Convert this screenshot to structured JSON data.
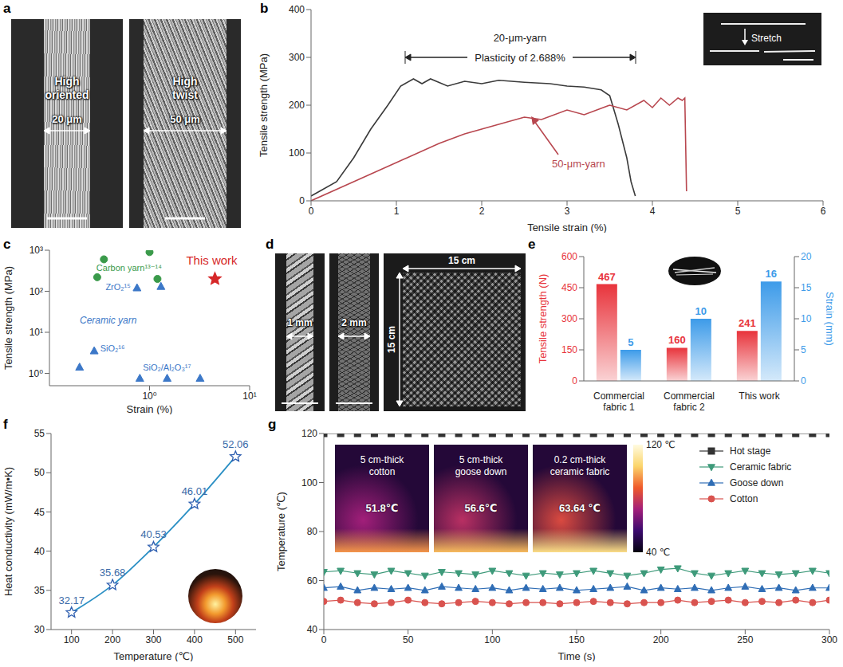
{
  "chart_data": [
    {
      "panel": "b",
      "type": "line",
      "xlabel": "Tensile strain (%)",
      "ylabel": "Tensile strength (MPa)",
      "xlim": [
        0,
        6
      ],
      "xticks": [
        0,
        1,
        2,
        3,
        4,
        5,
        6
      ],
      "ylim": [
        0,
        400
      ],
      "yticks": [
        0,
        100,
        200,
        300,
        400
      ],
      "series": [
        {
          "name": "20-μm-yarn",
          "color": "#3a3a3a",
          "x": [
            0,
            0.1,
            0.3,
            0.5,
            0.7,
            0.9,
            1.05,
            1.2,
            1.3,
            1.4,
            1.6,
            1.8,
            2.0,
            2.2,
            2.5,
            2.8,
            3.0,
            3.2,
            3.4,
            3.5,
            3.6,
            3.7,
            3.75,
            3.8
          ],
          "values": [
            10,
            20,
            40,
            90,
            150,
            200,
            240,
            255,
            245,
            255,
            240,
            250,
            245,
            252,
            248,
            245,
            240,
            238,
            232,
            220,
            160,
            90,
            40,
            10
          ]
        },
        {
          "name": "50-μm-yarn",
          "color": "#b8474f",
          "x": [
            0,
            0.5,
            1.0,
            1.5,
            1.8,
            2.0,
            2.2,
            2.5,
            2.7,
            3.0,
            3.2,
            3.5,
            3.7,
            3.9,
            4.0,
            4.1,
            4.2,
            4.3,
            4.35,
            4.38,
            4.4
          ],
          "values": [
            0,
            40,
            80,
            120,
            140,
            150,
            160,
            175,
            170,
            190,
            180,
            200,
            190,
            210,
            195,
            215,
            200,
            215,
            210,
            215,
            20
          ]
        }
      ],
      "annotations": [
        "Plasticity of 2.688%",
        "Stretch"
      ]
    },
    {
      "panel": "c",
      "type": "scatter",
      "log": true,
      "xlabel": "Strain (%)",
      "ylabel": "Tensile strength (MPa)",
      "xlim": [
        0.1,
        10
      ],
      "xticks": [
        {
          "value": 1,
          "label": "10⁰"
        },
        {
          "value": 10,
          "label": "10¹"
        }
      ],
      "ylim": [
        0.5,
        1000
      ],
      "yticks": [
        {
          "value": 1,
          "label": "10⁰"
        },
        {
          "value": 10,
          "label": "10¹"
        },
        {
          "value": 100,
          "label": "10²"
        },
        {
          "value": 1000,
          "label": "10³"
        }
      ],
      "series": [
        {
          "name": "Carbon yarn¹³⁻¹⁴",
          "color": "#3a9a4a",
          "marker": "circle",
          "x": [
            0.3,
            0.35,
            1.0,
            1.2
          ],
          "values": [
            220,
            600,
            900,
            200
          ]
        },
        {
          "name": "ZrO₂¹⁵",
          "color": "#3c78c8",
          "marker": "triangle",
          "x": [
            0.75,
            1.3
          ],
          "values": [
            120,
            130
          ]
        },
        {
          "name": "SiO₂¹⁶",
          "color": "#3c78c8",
          "marker": "triangle",
          "x": [
            0.2,
            0.28
          ],
          "values": [
            1.4,
            3.5
          ]
        },
        {
          "name": "SiO₂/Al₂O₃¹⁷",
          "color": "#3c78c8",
          "marker": "triangle",
          "x": [
            0.8,
            1.5,
            3.2
          ],
          "values": [
            0.75,
            0.75,
            0.75
          ]
        },
        {
          "name": "This work",
          "color": "#d62728",
          "marker": "star",
          "x": [
            4.5
          ],
          "values": [
            200
          ]
        }
      ],
      "annotations": [
        "Ceramic yarn"
      ]
    },
    {
      "panel": "e",
      "type": "bar",
      "categories": [
        "Commercial fabric 1",
        "Commercial fabric 2",
        "This work"
      ],
      "ylabel": "Tensile strength (N)",
      "y2label": "Strain (mm)",
      "ylim": [
        0,
        600
      ],
      "yticks": [
        0,
        150,
        300,
        450,
        600
      ],
      "y2lim": [
        0,
        20
      ],
      "y2ticks": [
        0,
        5,
        10,
        15,
        20
      ],
      "data_labels": true,
      "series": [
        {
          "color": "#e8343c",
          "values": [
            467,
            160,
            241
          ]
        },
        {
          "color": "#3d9be9",
          "values": [
            5,
            10,
            16
          ],
          "axis": "y2"
        }
      ]
    },
    {
      "panel": "f",
      "type": "line",
      "xlabel": "Temperature (℃)",
      "ylabel": "Heat conductivity (mW/m•K)",
      "x": [
        100,
        200,
        300,
        400,
        500
      ],
      "values": [
        32.17,
        35.68,
        40.53,
        46.01,
        52.06
      ],
      "color": "#2a8fc4",
      "marker": "star",
      "data_labels": true,
      "xlim": [
        50,
        550
      ],
      "xticks": [
        100,
        200,
        300,
        400,
        500
      ],
      "ylim": [
        30,
        55
      ],
      "yticks": [
        30,
        35,
        40,
        45,
        50,
        55
      ]
    },
    {
      "panel": "g",
      "type": "line",
      "xlabel": "Time (s)",
      "ylabel": "Temperature (℃)",
      "legend": "top-right",
      "xlim": [
        0,
        300
      ],
      "xticks": [
        0,
        50,
        100,
        150,
        200,
        250,
        300
      ],
      "ylim": [
        40,
        120
      ],
      "yticks": [
        40,
        60,
        80,
        100,
        120
      ],
      "x": [
        0,
        10,
        20,
        30,
        40,
        50,
        60,
        70,
        80,
        90,
        100,
        110,
        120,
        130,
        140,
        150,
        160,
        170,
        180,
        190,
        200,
        210,
        220,
        230,
        240,
        250,
        260,
        270,
        280,
        290,
        300
      ],
      "series": [
        {
          "name": "Hot stage",
          "color": "#333333",
          "marker": "square",
          "values": [
            120,
            120,
            120,
            120,
            120,
            120,
            120,
            120,
            120,
            120,
            120,
            120,
            120,
            120,
            120,
            120,
            120,
            120,
            120,
            120,
            120,
            120,
            120,
            120,
            120,
            120,
            120,
            120,
            120,
            120,
            120
          ]
        },
        {
          "name": "Ceramic fabric",
          "color": "#3e9a7a",
          "marker": "triangle-down",
          "values": [
            63.5,
            64,
            63,
            62.5,
            64,
            63,
            62,
            63.5,
            63,
            62.5,
            64,
            63,
            62,
            63,
            62.5,
            63,
            64,
            63,
            62,
            63,
            64.5,
            65,
            63,
            62,
            63,
            64,
            63,
            62.5,
            63,
            64,
            63
          ]
        },
        {
          "name": "Goose down",
          "color": "#2f6db5",
          "marker": "triangle",
          "values": [
            57,
            57.5,
            56,
            57,
            56.5,
            57,
            56,
            57.5,
            57,
            56.5,
            57,
            56,
            57,
            56.5,
            57,
            56,
            56.5,
            57,
            57.5,
            56,
            57,
            56.5,
            57,
            56,
            57,
            57.5,
            56.5,
            57,
            56,
            57,
            57
          ]
        },
        {
          "name": "Cotton",
          "color": "#d9534f",
          "marker": "circle",
          "values": [
            51.5,
            52,
            51,
            50.5,
            51,
            52,
            51,
            50.5,
            51,
            51.5,
            51,
            50.5,
            51,
            51,
            50.5,
            51,
            51.5,
            51,
            50.5,
            51,
            51,
            52,
            51,
            51.5,
            52,
            51,
            51.5,
            51,
            52,
            51,
            52
          ]
        }
      ],
      "insets": [
        {
          "label": "5 cm-thick cotton",
          "value": 51.8,
          "value_label": "51.8℃"
        },
        {
          "label": "5 cm-thick goose down",
          "value": 56.6,
          "value_label": "56.6℃"
        },
        {
          "label": "0.2 cm-thick ceramic fabric",
          "value": 63.64,
          "value_label": "63.64 ℃"
        }
      ],
      "colorbar": {
        "range": [
          40,
          120
        ],
        "ticks": [
          {
            "value": 40,
            "label": "40 ℃"
          },
          {
            "value": 120,
            "label": "120 ℃"
          }
        ]
      }
    }
  ],
  "images": [
    {
      "panel": "a",
      "items": [
        {
          "label": "High oriented",
          "scale": "20 μm"
        },
        {
          "label": "High twist",
          "scale": "50 μm"
        }
      ]
    },
    {
      "panel": "d",
      "items": [
        {
          "scale": "1 mm"
        },
        {
          "scale": "2 mm"
        },
        {
          "width": "15 cm",
          "height": "15 cm"
        }
      ]
    }
  ]
}
